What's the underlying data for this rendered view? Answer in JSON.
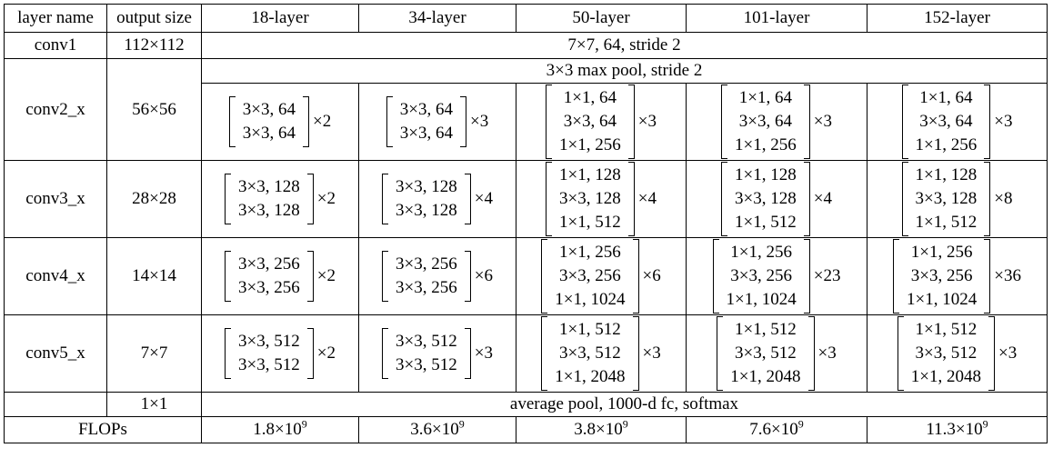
{
  "header": {
    "layer_name": "layer name",
    "output_size": "output size",
    "models": [
      "18-layer",
      "34-layer",
      "50-layer",
      "101-layer",
      "152-layer"
    ]
  },
  "conv1": {
    "name": "conv1",
    "size": "112×112",
    "spec": "7×7, 64, stride 2"
  },
  "pool": {
    "spec": "3×3 max pool, stride 2"
  },
  "stages": [
    {
      "name": "conv2_x",
      "size": "56×56",
      "blocks": [
        {
          "lines": [
            "3×3, 64",
            "3×3, 64"
          ],
          "mult": "×2"
        },
        {
          "lines": [
            "3×3, 64",
            "3×3, 64"
          ],
          "mult": "×3"
        },
        {
          "lines": [
            "1×1, 64",
            "3×3, 64",
            "1×1, 256"
          ],
          "mult": "×3"
        },
        {
          "lines": [
            "1×1, 64",
            "3×3, 64",
            "1×1, 256"
          ],
          "mult": "×3"
        },
        {
          "lines": [
            "1×1, 64",
            "3×3, 64",
            "1×1, 256"
          ],
          "mult": "×3"
        }
      ]
    },
    {
      "name": "conv3_x",
      "size": "28×28",
      "blocks": [
        {
          "lines": [
            "3×3, 128",
            "3×3, 128"
          ],
          "mult": "×2"
        },
        {
          "lines": [
            "3×3, 128",
            "3×3, 128"
          ],
          "mult": "×4"
        },
        {
          "lines": [
            "1×1, 128",
            "3×3, 128",
            "1×1, 512"
          ],
          "mult": "×4"
        },
        {
          "lines": [
            "1×1, 128",
            "3×3, 128",
            "1×1, 512"
          ],
          "mult": "×4"
        },
        {
          "lines": [
            "1×1, 128",
            "3×3, 128",
            "1×1, 512"
          ],
          "mult": "×8"
        }
      ]
    },
    {
      "name": "conv4_x",
      "size": "14×14",
      "blocks": [
        {
          "lines": [
            "3×3, 256",
            "3×3, 256"
          ],
          "mult": "×2"
        },
        {
          "lines": [
            "3×3, 256",
            "3×3, 256"
          ],
          "mult": "×6"
        },
        {
          "lines": [
            "1×1, 256",
            "3×3, 256",
            "1×1, 1024"
          ],
          "mult": "×6"
        },
        {
          "lines": [
            "1×1, 256",
            "3×3, 256",
            "1×1, 1024"
          ],
          "mult": "×23"
        },
        {
          "lines": [
            "1×1, 256",
            "3×3, 256",
            "1×1, 1024"
          ],
          "mult": "×36"
        }
      ]
    },
    {
      "name": "conv5_x",
      "size": "7×7",
      "blocks": [
        {
          "lines": [
            "3×3, 512",
            "3×3, 512"
          ],
          "mult": "×2"
        },
        {
          "lines": [
            "3×3, 512",
            "3×3, 512"
          ],
          "mult": "×3"
        },
        {
          "lines": [
            "1×1, 512",
            "3×3, 512",
            "1×1, 2048"
          ],
          "mult": "×3"
        },
        {
          "lines": [
            "1×1, 512",
            "3×3, 512",
            "1×1, 2048"
          ],
          "mult": "×3"
        },
        {
          "lines": [
            "1×1, 512",
            "3×3, 512",
            "1×1, 2048"
          ],
          "mult": "×3"
        }
      ]
    }
  ],
  "final": {
    "size": "1×1",
    "spec": "average pool, 1000-d fc, softmax"
  },
  "flops": {
    "label": "FLOPs",
    "values": [
      {
        "mantissa": "1.8×10",
        "exp": "9"
      },
      {
        "mantissa": "3.6×10",
        "exp": "9"
      },
      {
        "mantissa": "3.8×10",
        "exp": "9"
      },
      {
        "mantissa": "7.6×10",
        "exp": "9"
      },
      {
        "mantissa": "11.3×10",
        "exp": "9"
      }
    ]
  }
}
